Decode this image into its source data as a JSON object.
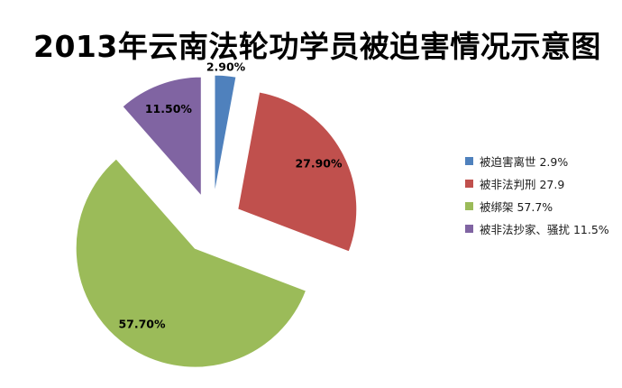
{
  "chart_data": {
    "type": "pie",
    "title": "2013年云南法轮功学员被迫害情况示意图",
    "direction": "clockwise",
    "start_angle_deg": 0,
    "exploded": true,
    "legend_position": "right",
    "background_color": "#ffffff",
    "slices": [
      {
        "label": "被迫害离世",
        "value": 2.9,
        "data_label": "2.90%",
        "legend_label": "被迫害离世 2.9%",
        "color": "#4f81bd"
      },
      {
        "label": "被非法判刑",
        "value": 27.9,
        "data_label": "27.90%",
        "legend_label": "被非法判刑 27.9",
        "color": "#c0504d"
      },
      {
        "label": "被绑架",
        "value": 57.7,
        "data_label": "57.70%",
        "legend_label": "被绑架 57.7%",
        "color": "#9bbb59"
      },
      {
        "label": "被非法抄家、骚扰",
        "value": 11.5,
        "data_label": "11.50%",
        "legend_label": "被非法抄家、骚扰  11.5%",
        "color": "#8064a2"
      }
    ]
  }
}
